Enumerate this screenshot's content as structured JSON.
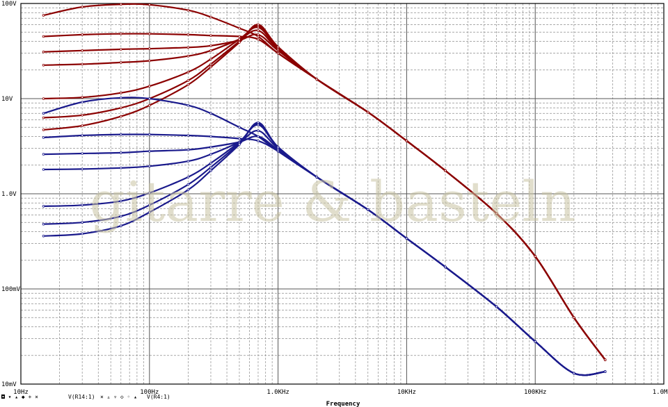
{
  "chart_data": {
    "type": "line",
    "title": "",
    "xlabel": "Frequency",
    "ylabel": "",
    "x_scale": "log",
    "y_scale": "log",
    "xlim": [
      10,
      1000000
    ],
    "ylim": [
      0.01,
      100
    ],
    "x_tick_labels": [
      "10Hz",
      "100Hz",
      "1.0KHz",
      "10KHz",
      "100KHz",
      "1.0MHz"
    ],
    "y_tick_labels": [
      "100V",
      "10V",
      "1.0V",
      "100mV",
      "10mV"
    ],
    "grid": true,
    "watermark": "gitarre & basteln",
    "legend": {
      "placement": "bottom-left",
      "groups": [
        {
          "markers": "◘ ▾ ▴ ◆ + ×",
          "label": "V(R14:1)",
          "color": "#8b0000"
        },
        {
          "markers": "× ▵ ▿ ◇ ◦ ▴",
          "label": "V(R4:1)",
          "color": "#00008b"
        }
      ]
    },
    "colors": {
      "red_series": "#8b0000",
      "blue_series": "#1a1a8c"
    },
    "x": [
      15,
      30,
      60,
      100,
      200,
      300,
      500,
      700,
      1000,
      2000,
      5000,
      10000,
      20000,
      50000,
      100000,
      200000,
      350000
    ],
    "series": [
      {
        "group": "V(R14:1)",
        "values": [
          75,
          92,
          98,
          97,
          85,
          72,
          55,
          45,
          30,
          16,
          7.2,
          3.6,
          1.75,
          0.62,
          0.22,
          0.05,
          0.018
        ]
      },
      {
        "group": "V(R14:1)",
        "values": [
          45,
          47,
          48,
          48,
          47,
          46,
          45,
          42,
          30,
          16,
          7.2,
          3.6,
          1.75,
          0.62,
          0.22,
          0.05,
          0.018
        ]
      },
      {
        "group": "V(R14:1)",
        "values": [
          31,
          32,
          33,
          33.5,
          34.5,
          36,
          41,
          47,
          32,
          16,
          7.2,
          3.6,
          1.75,
          0.62,
          0.22,
          0.05,
          0.018
        ]
      },
      {
        "group": "V(R14:1)",
        "values": [
          22.5,
          23,
          24,
          25,
          28,
          32,
          42,
          52,
          33,
          16,
          7.2,
          3.6,
          1.75,
          0.62,
          0.22,
          0.05,
          0.018
        ]
      },
      {
        "group": "V(R14:1)",
        "values": [
          10,
          10.3,
          11.5,
          13.5,
          19,
          26,
          42,
          56,
          34,
          16,
          7.2,
          3.6,
          1.75,
          0.62,
          0.22,
          0.05,
          0.018
        ]
      },
      {
        "group": "V(R14:1)",
        "values": [
          6.3,
          6.7,
          8,
          10,
          15.5,
          23,
          40,
          58,
          35,
          16,
          7.2,
          3.6,
          1.75,
          0.62,
          0.22,
          0.05,
          0.018
        ]
      },
      {
        "group": "V(R14:1)",
        "values": [
          4.7,
          5.2,
          6.5,
          8.5,
          14,
          21.5,
          39,
          60,
          35,
          16,
          7.2,
          3.6,
          1.75,
          0.62,
          0.22,
          0.05,
          0.018
        ]
      },
      {
        "group": "V(R4:1)",
        "values": [
          7,
          9.2,
          10.2,
          10,
          8.5,
          7,
          5,
          4,
          2.8,
          1.5,
          0.68,
          0.34,
          0.17,
          0.065,
          0.028,
          0.013,
          0.0135
        ]
      },
      {
        "group": "V(R4:1)",
        "values": [
          3.9,
          4.1,
          4.2,
          4.2,
          4.1,
          4,
          3.8,
          3.6,
          2.8,
          1.5,
          0.68,
          0.34,
          0.17,
          0.065,
          0.028,
          0.013,
          0.0135
        ]
      },
      {
        "group": "V(R4:1)",
        "values": [
          2.6,
          2.65,
          2.7,
          2.8,
          2.9,
          3.1,
          3.5,
          4,
          2.9,
          1.5,
          0.68,
          0.34,
          0.17,
          0.065,
          0.028,
          0.013,
          0.0135
        ]
      },
      {
        "group": "V(R4:1)",
        "values": [
          1.8,
          1.82,
          1.87,
          1.95,
          2.2,
          2.6,
          3.5,
          4.6,
          3,
          1.5,
          0.68,
          0.34,
          0.17,
          0.065,
          0.028,
          0.013,
          0.0135
        ]
      },
      {
        "group": "V(R4:1)",
        "values": [
          0.74,
          0.76,
          0.84,
          1.02,
          1.5,
          2.1,
          3.5,
          5.3,
          3.1,
          1.5,
          0.68,
          0.34,
          0.17,
          0.065,
          0.028,
          0.013,
          0.0135
        ]
      },
      {
        "group": "V(R4:1)",
        "values": [
          0.48,
          0.5,
          0.58,
          0.76,
          1.25,
          1.9,
          3.4,
          5.5,
          3.1,
          1.5,
          0.68,
          0.34,
          0.17,
          0.065,
          0.028,
          0.013,
          0.0135
        ]
      },
      {
        "group": "V(R4:1)",
        "values": [
          0.36,
          0.38,
          0.46,
          0.64,
          1.1,
          1.75,
          3.3,
          5.6,
          3.1,
          1.5,
          0.68,
          0.34,
          0.17,
          0.065,
          0.028,
          0.013,
          0.0135
        ]
      }
    ]
  }
}
